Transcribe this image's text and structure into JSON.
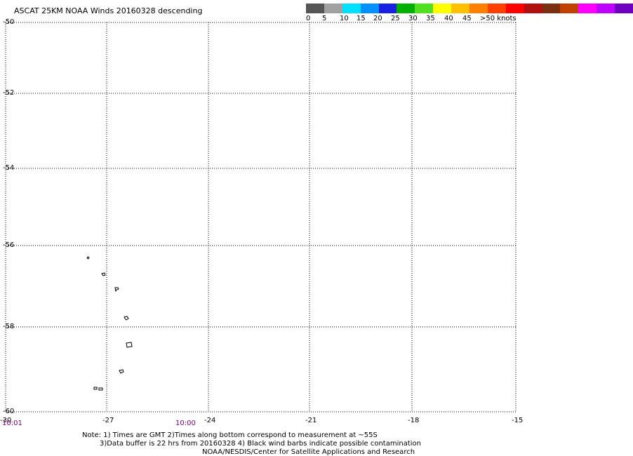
{
  "title": "ASCAT 25KM NOAA Winds 20160328 descending",
  "color_scale": {
    "labels": [
      "0",
      "5",
      "10",
      "15",
      "20",
      "25",
      "30",
      "35",
      "40",
      "45",
      ">50 knots"
    ],
    "colors": [
      "#555555",
      "#a0a0a0",
      "#00e0ff",
      "#0090ff",
      "#1a20e0",
      "#00b000",
      "#50e020",
      "#ffff00",
      "#ffc000",
      "#ff8000",
      "#ff4000",
      "#ff0000",
      "#b01010",
      "#7a3010",
      "#c04000",
      "#ff00ff",
      "#c000ff",
      "#7000c0"
    ]
  },
  "axes": {
    "lon_ticks": [
      "-30",
      "-27",
      "-24",
      "-21",
      "-18",
      "-15"
    ],
    "lat_ticks": [
      "-50",
      "-52",
      "-54",
      "-56",
      "-58",
      "-60"
    ]
  },
  "times": [
    "10:01",
    "10:00"
  ],
  "notes": [
    "Note: 1) Times are GMT 2)Times along bottom correspond to measurement at ~55S",
    "3)Data buffer is 22 hrs from 20160328 4) Black wind barbs indicate possible contamination",
    "NOAA/NESDIS/Center for Satellite Applications and Research"
  ],
  "islands": [
    "island-1",
    "island-2",
    "island-3",
    "island-4",
    "island-5",
    "island-6",
    "island-7"
  ],
  "grid": true
}
